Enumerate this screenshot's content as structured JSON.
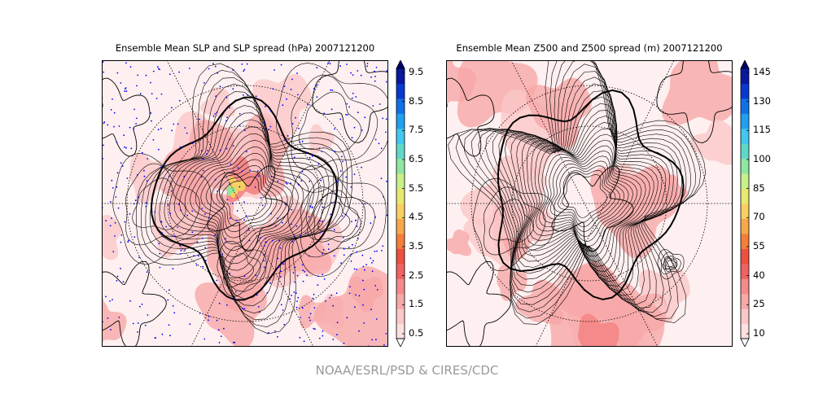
{
  "panels": [
    {
      "title": "Ensemble Mean SLP and SLP spread (hPa) 2007121200",
      "colorbar_ticks": [
        "9.5",
        "8.5",
        "7.5",
        "6.5",
        "5.5",
        "4.5",
        "3.5",
        "2.5",
        "1.5",
        "0.5"
      ],
      "observation_dots": true
    },
    {
      "title": "Ensemble Mean Z500 and Z500 spread (m) 2007121200",
      "colorbar_ticks": [
        "145",
        "130",
        "115",
        "100",
        "85",
        "70",
        "55",
        "40",
        "25",
        "10"
      ],
      "observation_dots": false
    }
  ],
  "colorbar_colors": [
    "#fde0e0",
    "#fbc8c8",
    "#f8a8a8",
    "#f58a8a",
    "#f26262",
    "#ee5040",
    "#f47e3a",
    "#f8a848",
    "#f8d060",
    "#e8e870",
    "#c8f088",
    "#90e8a0",
    "#60d8c8",
    "#40c8f0",
    "#20a0f0",
    "#1070e8",
    "#0838d0",
    "#0818a0",
    "#000070"
  ],
  "map_styles": {
    "contour_color": "#000000",
    "dot_color": "#0000ff",
    "coastline_color": "#000000"
  },
  "footer": "NOAA/ESRL/PSD & CIRES/CDC"
}
